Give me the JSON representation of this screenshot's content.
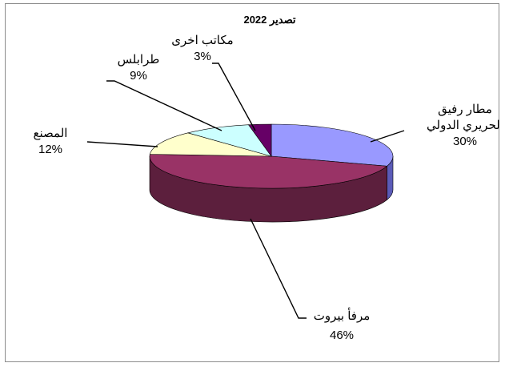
{
  "chart_data": {
    "type": "pie",
    "title": "تصدير 2022",
    "slices": [
      {
        "name": "مطار رفيق الحريري الدولي",
        "name_lines": [
          "مطار رفيق",
          "الحريري الدولي"
        ],
        "value": 30,
        "label": "30%",
        "color": "#9999ff",
        "side": "#5b5bb8"
      },
      {
        "name": "مرفأ بيروت",
        "name_lines": [
          "مرفأ بيروت"
        ],
        "value": 46,
        "label": "46%",
        "color": "#993366",
        "side": "#5c1f3d"
      },
      {
        "name": "المصنع",
        "name_lines": [
          "المصنع"
        ],
        "value": 12,
        "label": "12%",
        "color": "#ffffcc",
        "side": "#b8b88a"
      },
      {
        "name": "طرابلس",
        "name_lines": [
          "طرابلس"
        ],
        "value": 9,
        "label": "9%",
        "color": "#ccffff",
        "side": "#7fb3b3"
      },
      {
        "name": "مكاتب اخرى",
        "name_lines": [
          "مكاتب اخرى"
        ],
        "value": 3,
        "label": "3%",
        "color": "#660066",
        "side": "#3a003a"
      }
    ],
    "legend": "none"
  }
}
